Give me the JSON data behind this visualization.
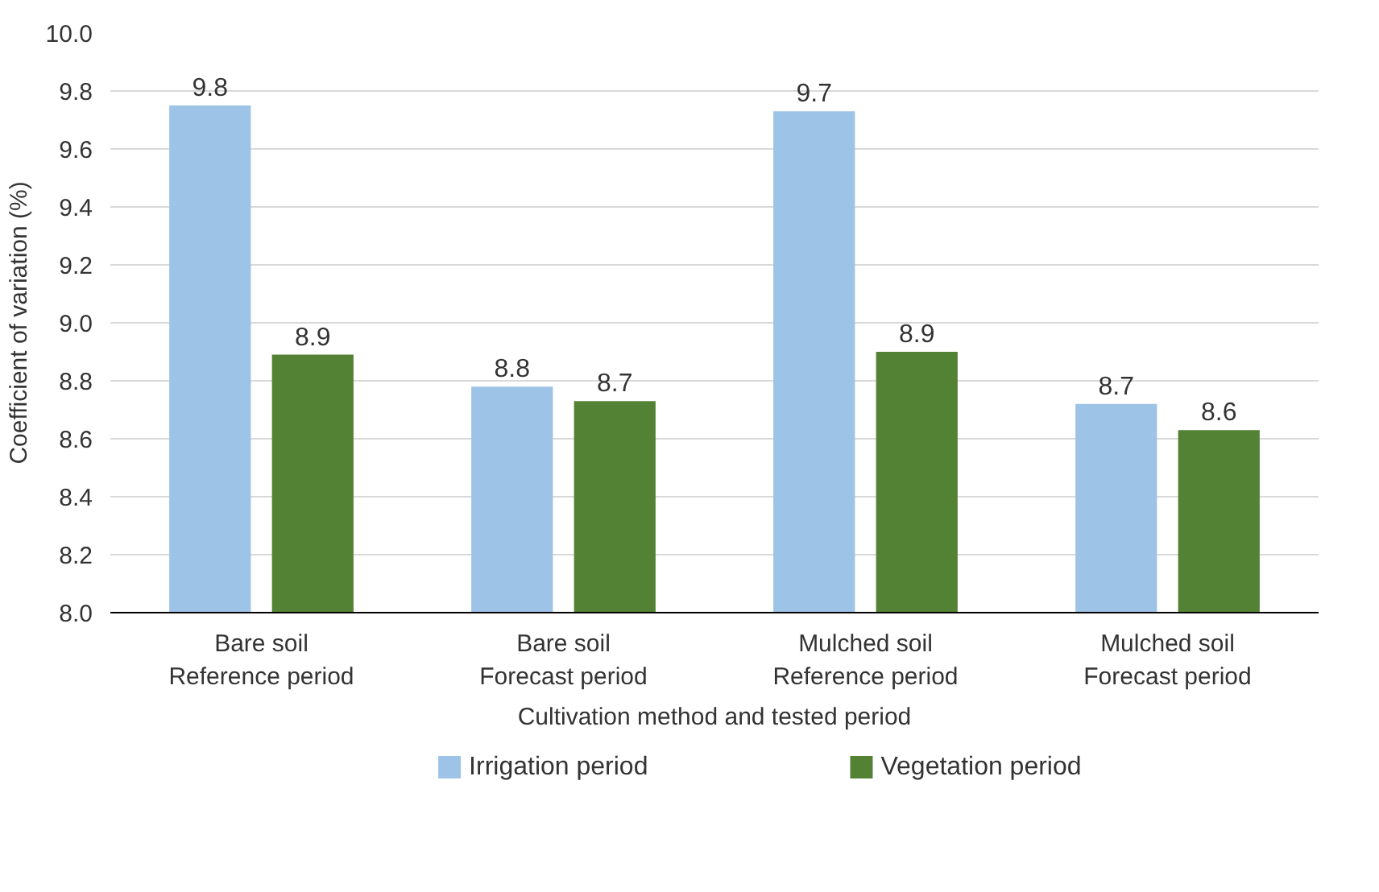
{
  "chart_data": {
    "type": "bar",
    "xlabel": "Cultivation method and tested period",
    "ylabel": "Coefficient of variation (%)",
    "categories": [
      "Bare soil\nReference period",
      "Bare soil\nForecast period",
      "Mulched soil\nReference period",
      "Mulched soil\nForecast period"
    ],
    "series": [
      {
        "name": "Irrigation period",
        "color": "#9dc3e6",
        "values": [
          9.75,
          8.78,
          9.73,
          8.72
        ],
        "value_labels": [
          "9.8",
          "8.8",
          "9.7",
          "8.7"
        ]
      },
      {
        "name": "Vegetation period",
        "color": "#548235",
        "values": [
          8.89,
          8.73,
          8.9,
          8.63
        ],
        "value_labels": [
          "8.9",
          "8.7",
          "8.9",
          "8.6"
        ]
      }
    ],
    "ylim": [
      8.0,
      10.0
    ],
    "yticks": [
      {
        "value": 8.0,
        "label": "8.0"
      },
      {
        "value": 8.2,
        "label": "8.2"
      },
      {
        "value": 8.4,
        "label": "8.4"
      },
      {
        "value": 8.6,
        "label": "8.6"
      },
      {
        "value": 8.8,
        "label": "8.8"
      },
      {
        "value": 9.0,
        "label": "9.0"
      },
      {
        "value": 9.2,
        "label": "9.2"
      },
      {
        "value": 9.4,
        "label": "9.4"
      },
      {
        "value": 9.6,
        "label": "9.6"
      },
      {
        "value": 9.8,
        "label": "9.8"
      },
      {
        "value": 10.0,
        "label": "10.0"
      }
    ],
    "grid": "y",
    "legend": "bottom"
  }
}
